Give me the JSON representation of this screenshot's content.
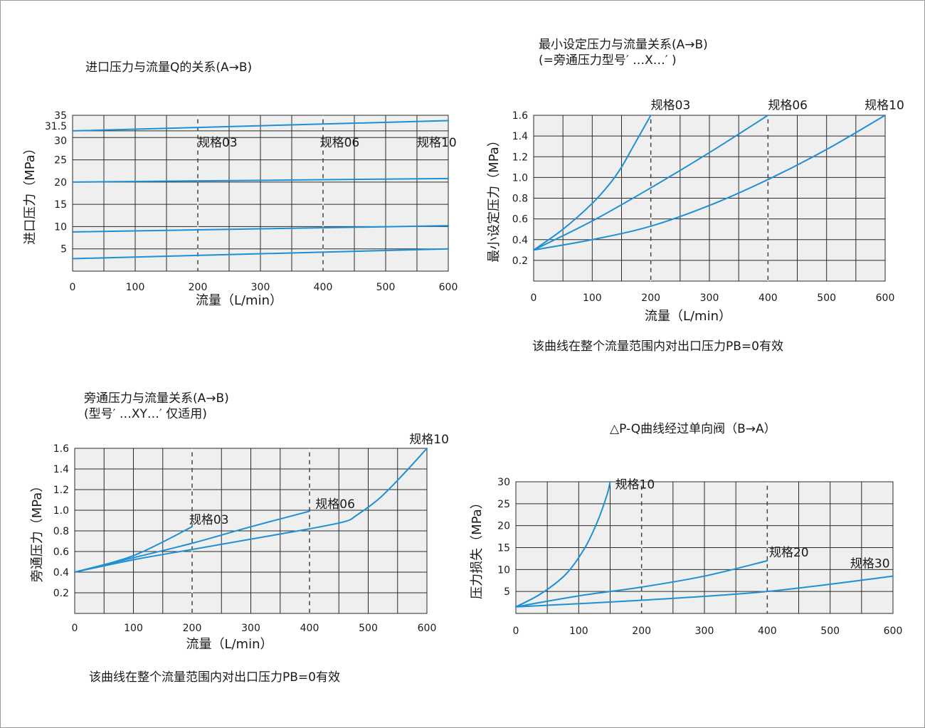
{
  "chart_data": [
    {
      "id": "c1",
      "type": "line",
      "title": [
        "进口压力与流量Q的关系(A→B)"
      ],
      "xlabel": "流量（L/min）",
      "ylabel": "进口压力（MPa）",
      "xlim": [
        0,
        600
      ],
      "ylim": [
        0,
        35
      ],
      "x_ticks": [
        0,
        100,
        200,
        300,
        400,
        500,
        600
      ],
      "y_ticks": [
        5,
        10,
        15,
        20,
        25,
        30,
        31.5,
        35
      ],
      "y_tick_labels": [
        "5",
        "10",
        "15",
        "20",
        "25",
        "30",
        "31.5",
        "35"
      ],
      "grid_x_step": 50,
      "grid_y_values": [
        5,
        10,
        15,
        20,
        25,
        30,
        31.5,
        35
      ],
      "dashed_x": [
        200,
        400
      ],
      "size_labels": [
        {
          "text": "规格03",
          "x": 200,
          "y": 28
        },
        {
          "text": "规格06",
          "x": 395,
          "y": 28
        },
        {
          "text": "规格10",
          "x": 550,
          "y": 28
        }
      ],
      "series": [
        {
          "x": [
            0,
            600
          ],
          "y": [
            2.8,
            5.0
          ]
        },
        {
          "x": [
            0,
            600
          ],
          "y": [
            8.8,
            10.2
          ]
        },
        {
          "x": [
            0,
            600
          ],
          "y": [
            20.0,
            20.8
          ]
        },
        {
          "x": [
            0,
            600
          ],
          "y": [
            31.5,
            33.8
          ]
        }
      ],
      "notes": []
    },
    {
      "id": "c2",
      "type": "line",
      "title": [
        "最小设定压力与流量关系(A→B)",
        "(=旁通压力型号′ …X…′ )"
      ],
      "xlabel": "流量（L/min）",
      "ylabel": "最小设定压力（MPa）",
      "xlim": [
        0,
        600
      ],
      "ylim": [
        0,
        1.6
      ],
      "x_ticks": [
        0,
        100,
        200,
        300,
        400,
        500,
        600
      ],
      "y_ticks": [
        0.2,
        0.4,
        0.6,
        0.8,
        1.0,
        1.2,
        1.4,
        1.6
      ],
      "y_tick_labels": [
        "0.2",
        "0.4",
        "0.6",
        "0.8",
        "1.0",
        "1.2",
        "1.4",
        "1.6"
      ],
      "grid_x_step": 50,
      "grid_y_values": [
        0.2,
        0.4,
        0.6,
        0.8,
        1.0,
        1.2,
        1.4,
        1.6
      ],
      "dashed_x": [
        200,
        400
      ],
      "size_labels": [
        {
          "text": "规格03",
          "x": 200,
          "y": 1.66
        },
        {
          "text": "规格06",
          "x": 400,
          "y": 1.66
        },
        {
          "text": "规格10",
          "x": 565,
          "y": 1.66
        }
      ],
      "series": [
        {
          "name": "规格03",
          "x": [
            0,
            50,
            100,
            130,
            150,
            170,
            185,
            200
          ],
          "y": [
            0.3,
            0.5,
            0.75,
            0.94,
            1.1,
            1.3,
            1.45,
            1.6
          ]
        },
        {
          "name": "规格06",
          "x": [
            0,
            100,
            200,
            300,
            400
          ],
          "y": [
            0.3,
            0.58,
            0.9,
            1.24,
            1.6
          ]
        },
        {
          "name": "规格10",
          "x": [
            0,
            100,
            200,
            300,
            400,
            500,
            600
          ],
          "y": [
            0.3,
            0.4,
            0.53,
            0.73,
            0.98,
            1.27,
            1.6
          ]
        }
      ],
      "notes": [
        "该曲线在整个流量范围内对出口压力PB=0有效"
      ]
    },
    {
      "id": "c3",
      "type": "line",
      "title": [
        "旁通压力与流量关系(A→B)",
        "(型号′ …XY…′  仅适用)"
      ],
      "xlabel": "流量（L/min）",
      "ylabel": "旁通压力（MPa）",
      "xlim": [
        0,
        600
      ],
      "ylim": [
        0,
        1.6
      ],
      "x_ticks": [
        0,
        100,
        200,
        300,
        400,
        500,
        600
      ],
      "y_ticks": [
        0.2,
        0.4,
        0.6,
        0.8,
        1.0,
        1.2,
        1.4,
        1.6
      ],
      "y_tick_labels": [
        "0.2",
        "0.4",
        "0.6",
        "0.8",
        "1.0",
        "1.2",
        "1.4",
        "1.6"
      ],
      "grid_x_step": 50,
      "grid_y_values": [
        0.2,
        0.4,
        0.6,
        0.8,
        1.0,
        1.2,
        1.4,
        1.6
      ],
      "dashed_x": [
        200,
        400
      ],
      "size_labels": [
        {
          "text": "规格03",
          "x": 195,
          "y": 0.87
        },
        {
          "text": "规格06",
          "x": 410,
          "y": 1.02
        },
        {
          "text": "规格10",
          "x": 570,
          "y": 1.65
        }
      ],
      "series": [
        {
          "name": "规格03",
          "x": [
            0,
            100,
            200
          ],
          "y": [
            0.4,
            0.56,
            0.84
          ]
        },
        {
          "name": "规格06",
          "x": [
            0,
            100,
            200,
            300,
            400
          ],
          "y": [
            0.4,
            0.54,
            0.68,
            0.84,
            0.99
          ]
        },
        {
          "name": "规格10",
          "x": [
            0,
            100,
            200,
            300,
            400,
            460,
            480,
            520,
            560,
            600
          ],
          "y": [
            0.4,
            0.52,
            0.62,
            0.72,
            0.82,
            0.89,
            0.95,
            1.12,
            1.35,
            1.6
          ]
        }
      ],
      "notes": [
        "该曲线在整个流量范围内对出口压力PB=0有效"
      ]
    },
    {
      "id": "c4",
      "type": "line",
      "title": [
        "△P-Q曲线经过单向阀（B→A）"
      ],
      "xlabel": "",
      "ylabel": "压力损失（MPa）",
      "xlim": [
        0,
        600
      ],
      "ylim": [
        0,
        30
      ],
      "x_ticks": [
        0,
        100,
        200,
        300,
        400,
        500,
        600
      ],
      "y_ticks": [
        5,
        10,
        15,
        20,
        25,
        30
      ],
      "y_tick_labels": [
        "5",
        "10",
        "15",
        "20",
        "25",
        "30"
      ],
      "grid_x_step": 50,
      "grid_y_values": [
        5,
        10,
        15,
        20,
        25,
        30
      ],
      "dashed_x": [
        200,
        400
      ],
      "size_labels": [
        {
          "text": "规格10",
          "x": 158,
          "y": 28.5
        },
        {
          "text": "规格20",
          "x": 403,
          "y": 13.0
        },
        {
          "text": "规格30",
          "x": 532,
          "y": 10.5
        }
      ],
      "series": [
        {
          "name": "规格10",
          "x": [
            0,
            40,
            80,
            110,
            130,
            145,
            150
          ],
          "y": [
            1.5,
            4.5,
            9.0,
            15.0,
            21.0,
            27.0,
            30.0
          ]
        },
        {
          "name": "规格20",
          "x": [
            0,
            100,
            200,
            300,
            400
          ],
          "y": [
            1.5,
            4.0,
            6.0,
            8.5,
            12.0
          ]
        },
        {
          "name": "规格30",
          "x": [
            0,
            200,
            400,
            600
          ],
          "y": [
            1.5,
            3.0,
            5.0,
            8.5
          ]
        }
      ],
      "notes": []
    }
  ],
  "colors": {
    "curve": "#1f8fd6",
    "grid": "#2a2a2a",
    "plot_bg": "#efefef",
    "dash_light": "#ffffff",
    "dash_dark": "#444444"
  }
}
